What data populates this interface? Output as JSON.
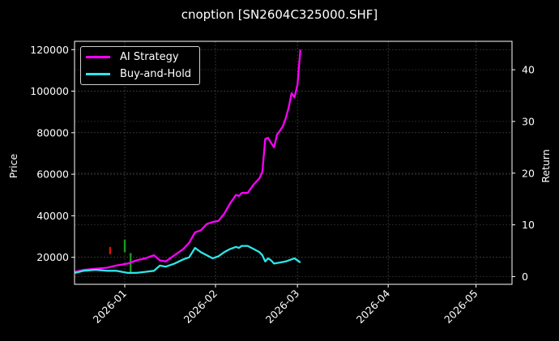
{
  "chart_data": {
    "type": "line",
    "title": "cnoption [SN2604C325000.SHF]",
    "xlabel": "",
    "ylabel": "Price",
    "ylabel_right": "Return",
    "x_ticks": [
      "2026-01",
      "2026-02",
      "2026-03",
      "2026-04",
      "2026-05"
    ],
    "y_ticks": [
      "20000",
      "40000",
      "60000",
      "80000",
      "100000",
      "120000"
    ],
    "y2_ticks": [
      "0",
      "10",
      "20",
      "30",
      "40"
    ],
    "ylim": [
      7000,
      124000
    ],
    "y2lim": [
      -1.5,
      45.5
    ],
    "grid": true,
    "legend_position": "upper left",
    "series": [
      {
        "name": "AI Strategy",
        "color": "#ff00ff",
        "axis": "left",
        "points": [
          [
            "2025-12-15",
            13000
          ],
          [
            "2025-12-18",
            14000
          ],
          [
            "2025-12-22",
            14500
          ],
          [
            "2025-12-26",
            15000
          ],
          [
            "2025-12-29",
            16000
          ],
          [
            "2026-01-02",
            17000
          ],
          [
            "2026-01-05",
            18500
          ],
          [
            "2026-01-08",
            19500
          ],
          [
            "2026-01-11",
            21000
          ],
          [
            "2026-01-13",
            18500
          ],
          [
            "2026-01-15",
            18000
          ],
          [
            "2026-01-18",
            21000
          ],
          [
            "2026-01-21",
            24000
          ],
          [
            "2026-01-23",
            27000
          ],
          [
            "2026-01-25",
            32000
          ],
          [
            "2026-01-27",
            33000
          ],
          [
            "2026-01-29",
            36000
          ],
          [
            "2026-01-31",
            37000
          ],
          [
            "2026-02-02",
            37500
          ],
          [
            "2026-02-04",
            41000
          ],
          [
            "2026-02-06",
            46000
          ],
          [
            "2026-02-08",
            50000
          ],
          [
            "2026-02-09",
            49500
          ],
          [
            "2026-02-10",
            51000
          ],
          [
            "2026-02-12",
            51000
          ],
          [
            "2026-02-14",
            55000
          ],
          [
            "2026-02-16",
            58000
          ],
          [
            "2026-02-17",
            61000
          ],
          [
            "2026-02-18",
            77000
          ],
          [
            "2026-02-19",
            77500
          ],
          [
            "2026-02-20",
            75000
          ],
          [
            "2026-02-21",
            73000
          ],
          [
            "2026-02-22",
            79000
          ],
          [
            "2026-02-24",
            83000
          ],
          [
            "2026-02-25",
            87000
          ],
          [
            "2026-02-26",
            92000
          ],
          [
            "2026-02-27",
            99000
          ],
          [
            "2026-02-28",
            97000
          ],
          [
            "2026-03-01",
            103000
          ],
          [
            "2026-03-02",
            120000
          ]
        ]
      },
      {
        "name": "Buy-and-Hold",
        "color": "#2de6ea",
        "axis": "left",
        "points": [
          [
            "2025-12-15",
            12500
          ],
          [
            "2025-12-18",
            13500
          ],
          [
            "2025-12-22",
            14000
          ],
          [
            "2025-12-26",
            13500
          ],
          [
            "2025-12-29",
            13500
          ],
          [
            "2026-01-02",
            12500
          ],
          [
            "2026-01-05",
            12500
          ],
          [
            "2026-01-08",
            13000
          ],
          [
            "2026-01-11",
            13500
          ],
          [
            "2026-01-13",
            16000
          ],
          [
            "2026-01-15",
            15500
          ],
          [
            "2026-01-18",
            17000
          ],
          [
            "2026-01-21",
            19000
          ],
          [
            "2026-01-23",
            20000
          ],
          [
            "2026-01-25",
            24500
          ],
          [
            "2026-01-27",
            22500
          ],
          [
            "2026-01-29",
            21000
          ],
          [
            "2026-01-31",
            19500
          ],
          [
            "2026-02-02",
            20500
          ],
          [
            "2026-02-04",
            22500
          ],
          [
            "2026-02-06",
            24000
          ],
          [
            "2026-02-08",
            25000
          ],
          [
            "2026-02-09",
            24500
          ],
          [
            "2026-02-10",
            25500
          ],
          [
            "2026-02-12",
            25500
          ],
          [
            "2026-02-14",
            24000
          ],
          [
            "2026-02-16",
            22500
          ],
          [
            "2026-02-17",
            21000
          ],
          [
            "2026-02-18",
            18000
          ],
          [
            "2026-02-19",
            19500
          ],
          [
            "2026-02-20",
            18500
          ],
          [
            "2026-02-21",
            17000
          ],
          [
            "2026-02-23",
            17500
          ],
          [
            "2026-02-25",
            18000
          ],
          [
            "2026-02-27",
            19000
          ],
          [
            "2026-02-28",
            19500
          ],
          [
            "2026-03-01",
            18500
          ],
          [
            "2026-03-02",
            17500
          ]
        ]
      }
    ],
    "candles": [
      {
        "date": "2025-12-27",
        "open": 25000,
        "close": 21500,
        "color": "#e01010"
      },
      {
        "date": "2026-01-01",
        "open": 22500,
        "close": 28500,
        "color": "#1a9a1a"
      },
      {
        "date": "2026-01-03",
        "open": 12000,
        "close": 22000,
        "color": "#1a9a1a"
      }
    ]
  },
  "legend": {
    "items": [
      {
        "label": "AI Strategy",
        "color": "#ff00ff"
      },
      {
        "label": "Buy-and-Hold",
        "color": "#2de6ea"
      }
    ]
  }
}
